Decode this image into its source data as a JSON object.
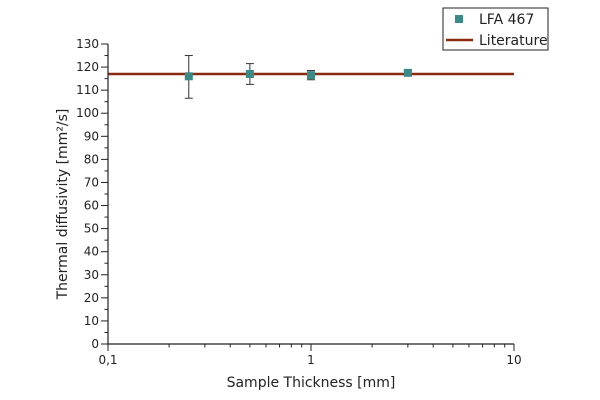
{
  "chart_data": {
    "type": "scatter",
    "xlabel": "Sample Thickness [mm]",
    "ylabel": "Thermal diffusivity [mm²/s]",
    "x_scale": "log",
    "xlim": [
      0.1,
      10
    ],
    "ylim": [
      0,
      130
    ],
    "x_ticks": [
      {
        "value": 0.1,
        "label": "0,1"
      },
      {
        "value": 1,
        "label": "1"
      },
      {
        "value": 10,
        "label": "10"
      }
    ],
    "y_ticks": [
      {
        "value": 0,
        "label": "0"
      },
      {
        "value": 10,
        "label": "10"
      },
      {
        "value": 20,
        "label": "20"
      },
      {
        "value": 30,
        "label": "30"
      },
      {
        "value": 40,
        "label": "40"
      },
      {
        "value": 50,
        "label": "50"
      },
      {
        "value": 60,
        "label": "60"
      },
      {
        "value": 70,
        "label": "70"
      },
      {
        "value": 80,
        "label": "80"
      },
      {
        "value": 90,
        "label": "90"
      },
      {
        "value": 100,
        "label": "100"
      },
      {
        "value": 110,
        "label": "110"
      },
      {
        "value": 120,
        "label": "120"
      },
      {
        "value": 130,
        "label": "130"
      }
    ],
    "series": [
      {
        "name": "LFA 467",
        "kind": "markers",
        "color": "#3c8a86",
        "points": [
          {
            "x": 0.25,
            "y": 116,
            "err_low": 106.5,
            "err_high": 125
          },
          {
            "x": 0.5,
            "y": 117,
            "err_low": 112.5,
            "err_high": 121.5
          },
          {
            "x": 1.0,
            "y": 116.5,
            "err_low": 114.5,
            "err_high": 118.5
          },
          {
            "x": 3.0,
            "y": 117.5,
            "err_low": 116.5,
            "err_high": 118.5
          }
        ]
      },
      {
        "name": "Literature",
        "kind": "line",
        "color": "#8b2a10",
        "y": 117
      }
    ],
    "legend": {
      "position": "top-right",
      "entries": [
        "LFA 467",
        "Literature"
      ]
    },
    "grid": false
  }
}
